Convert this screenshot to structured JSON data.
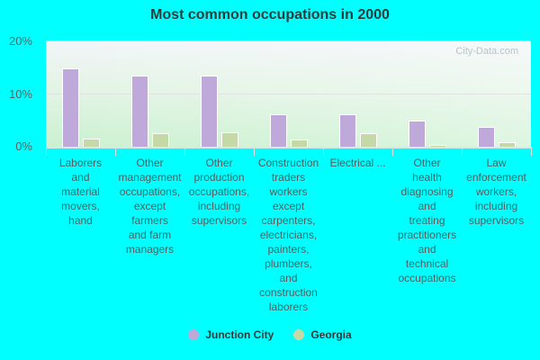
{
  "title": "Most common occupations in 2000",
  "watermark": "City-Data.com",
  "y_axis": {
    "ticks": [
      "20%",
      "10%",
      "0%"
    ]
  },
  "legend": [
    {
      "label": "Junction City",
      "color": "#bfa8da"
    },
    {
      "label": "Georgia",
      "color": "#c5d9a6"
    }
  ],
  "chart_data": {
    "type": "bar",
    "title": "Most common occupations in 2000",
    "xlabel": "",
    "ylabel": "",
    "ylim": [
      0,
      20
    ],
    "y_ticks": [
      "0%",
      "10%",
      "20%"
    ],
    "grid": true,
    "legend_position": "bottom",
    "categories": [
      "Laborers and material movers, hand",
      "Other management occupations, except farmers and farm managers",
      "Other production occupations, including supervisors",
      "Construction traders workers except carpenters, electricians, painters, plumbers, and construction laborers",
      "Electrical ...",
      "Other health diagnosing and treating practitioners and technical occupations",
      "Law enforcement workers, including supervisors"
    ],
    "series": [
      {
        "name": "Junction City",
        "color": "#bfa8da",
        "values": [
          14.7,
          13.4,
          13.4,
          6.1,
          6.1,
          4.9,
          3.7
        ]
      },
      {
        "name": "Georgia",
        "color": "#c5d9a6",
        "values": [
          1.5,
          2.5,
          2.7,
          1.4,
          2.5,
          0.3,
          0.8
        ]
      }
    ]
  },
  "x_labels": [
    [
      "Laborers",
      "and",
      "material",
      "movers,",
      "hand"
    ],
    [
      "Other",
      "management",
      "occupations,",
      "except",
      "farmers",
      "and farm",
      "managers"
    ],
    [
      "Other",
      "production",
      "occupations,",
      "including",
      "supervisors"
    ],
    [
      "Construction",
      "traders",
      "workers",
      "except",
      "carpenters,",
      "electricians,",
      "painters,",
      "plumbers,",
      "and",
      "construction",
      "laborers"
    ],
    [
      "Electrical ..."
    ],
    [
      "Other",
      "health",
      "diagnosing",
      "and",
      "treating",
      "practitioners",
      "and",
      "technical",
      "occupations"
    ],
    [
      "Law",
      "enforcement",
      "workers,",
      "including",
      "supervisors"
    ]
  ]
}
